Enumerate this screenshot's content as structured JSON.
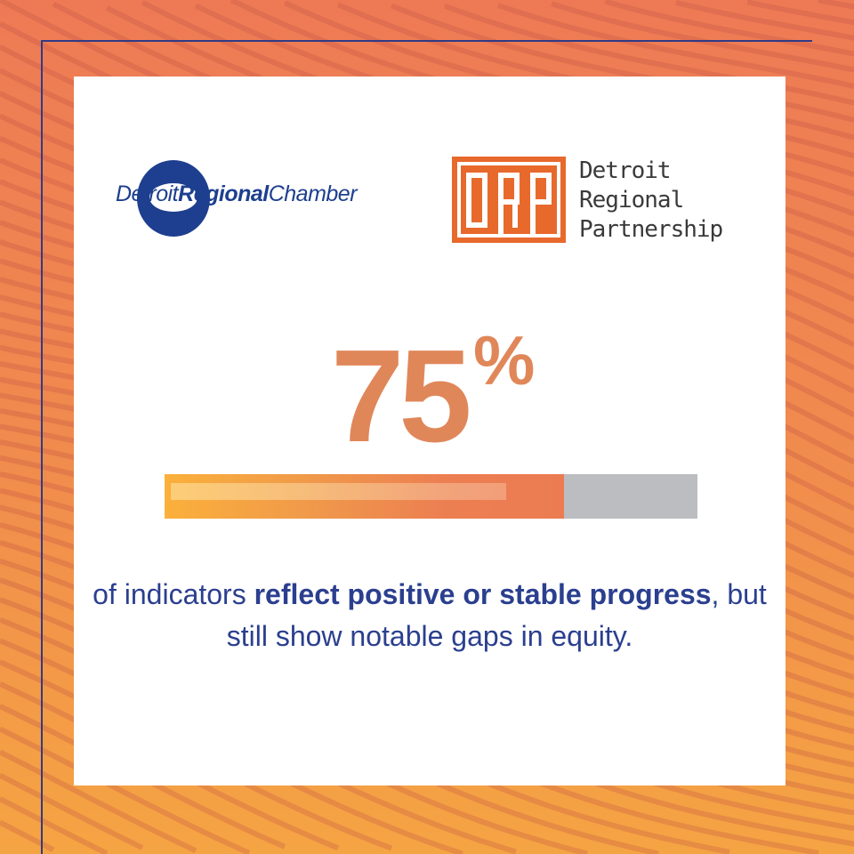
{
  "logos": {
    "chamber": {
      "part1": "Detroit",
      "part2": "Regional",
      "part3": "Chamber"
    },
    "drp": {
      "mark": "DRP",
      "lines": [
        "Detroit",
        "Regional",
        "Partnership"
      ]
    }
  },
  "stat": {
    "value": "75",
    "unit": "%",
    "progress_percent": 75
  },
  "caption": {
    "pre": "of indicators ",
    "bold": "reflect positive or stable progress",
    "post": ", but still show notable gaps in equity."
  },
  "colors": {
    "accent": "#e0875a",
    "navy": "#2b3f8f",
    "bar_track": "#bcbdc0",
    "drp_orange": "#e8692c"
  }
}
